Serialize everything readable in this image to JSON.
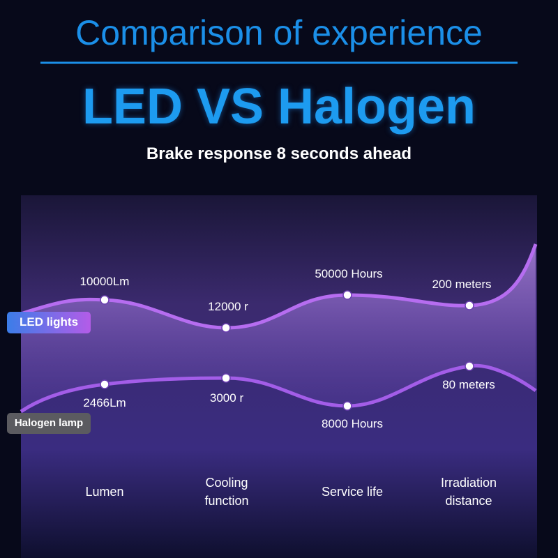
{
  "header": {
    "title": "Comparison of experience",
    "headline": "LED VS Halogen",
    "subtitle": "Brake response 8 seconds ahead"
  },
  "series": [
    {
      "name": "LED lights",
      "points": [
        "10000Lm",
        "12000 r",
        "50000 Hours",
        "200 meters"
      ]
    },
    {
      "name": "Halogen lamp",
      "points": [
        "2466Lm",
        "3000 r",
        "8000 Hours",
        "80 meters"
      ]
    }
  ],
  "categories": [
    "Lumen",
    "Cooling function",
    "Service life",
    "Irradiation distance"
  ]
}
